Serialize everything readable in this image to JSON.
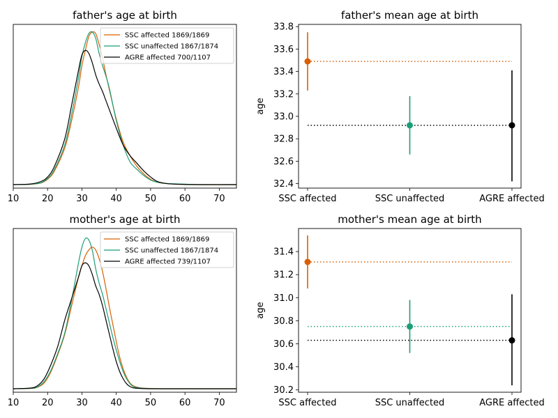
{
  "chart_data": [
    {
      "type": "line",
      "title": "father's age at birth",
      "xlim": [
        10,
        75
      ],
      "xticks": [
        10,
        20,
        30,
        40,
        50,
        60,
        70
      ],
      "ylim": [
        0,
        1.05
      ],
      "yticks_shown": false,
      "legend_position": "top-right",
      "series": [
        {
          "name": "SSC affected 1869/1869",
          "color": "#d95f02",
          "x": [
            10,
            15,
            18,
            20,
            22,
            25,
            27,
            29,
            30,
            31,
            32,
            33,
            34,
            35,
            36,
            37,
            38,
            40,
            42,
            44,
            46,
            48,
            50,
            52,
            55,
            60,
            65,
            75
          ],
          "y": [
            0,
            0.002,
            0.01,
            0.035,
            0.09,
            0.24,
            0.42,
            0.64,
            0.78,
            0.88,
            0.97,
            1.0,
            0.99,
            0.92,
            0.83,
            0.72,
            0.62,
            0.43,
            0.28,
            0.19,
            0.12,
            0.07,
            0.035,
            0.015,
            0.006,
            0.001,
            0,
            0
          ]
        },
        {
          "name": "SSC unaffected 1867/1874",
          "color": "#1b9e77",
          "x": [
            10,
            15,
            18,
            20,
            22,
            25,
            27,
            29,
            30,
            31,
            32,
            33,
            34,
            35,
            36,
            37,
            38,
            40,
            42,
            44,
            46,
            48,
            50,
            52,
            55,
            60,
            65,
            75
          ],
          "y": [
            0,
            0.003,
            0.012,
            0.04,
            0.1,
            0.26,
            0.46,
            0.7,
            0.84,
            0.93,
            0.99,
            1.0,
            0.96,
            0.86,
            0.78,
            0.71,
            0.63,
            0.42,
            0.26,
            0.15,
            0.1,
            0.06,
            0.03,
            0.015,
            0.007,
            0.003,
            0,
            0
          ]
        },
        {
          "name": "AGRE affected 700/1107",
          "color": "#000000",
          "x": [
            10,
            15,
            18,
            20,
            22,
            25,
            27,
            29,
            30,
            31,
            32,
            33,
            34,
            35,
            36,
            37,
            38,
            40,
            42,
            44,
            46,
            48,
            50,
            52,
            55,
            60,
            65,
            75
          ],
          "y": [
            0,
            0.004,
            0.02,
            0.05,
            0.12,
            0.3,
            0.52,
            0.75,
            0.85,
            0.88,
            0.86,
            0.8,
            0.72,
            0.66,
            0.61,
            0.55,
            0.49,
            0.37,
            0.26,
            0.19,
            0.14,
            0.09,
            0.05,
            0.02,
            0.006,
            0.001,
            0,
            0
          ]
        }
      ]
    },
    {
      "type": "scatter",
      "title": "father's mean age at birth",
      "categories": [
        "SSC affected",
        "SSC unaffected",
        "AGRE affected"
      ],
      "ylabel": "age",
      "ylim": [
        32.36,
        33.82
      ],
      "yticks": [
        32.4,
        32.6,
        32.8,
        33.0,
        33.2,
        33.4,
        33.6,
        33.8
      ],
      "points": [
        {
          "category": "SSC affected",
          "mean": 33.49,
          "lower": 33.23,
          "upper": 33.75,
          "color": "#d95f02"
        },
        {
          "category": "SSC unaffected",
          "mean": 32.92,
          "lower": 32.66,
          "upper": 33.18,
          "color": "#1b9e77"
        },
        {
          "category": "AGRE affected",
          "mean": 32.92,
          "lower": 32.42,
          "upper": 33.41,
          "color": "#000000"
        }
      ],
      "reference_lines": [
        {
          "value": 33.49,
          "color": "#d95f02"
        },
        {
          "value": 32.92,
          "color": "#000000"
        }
      ]
    },
    {
      "type": "line",
      "title": "mother's age at birth",
      "xlim": [
        10,
        75
      ],
      "xticks": [
        10,
        20,
        30,
        40,
        50,
        60,
        70
      ],
      "ylim": [
        0,
        1.12
      ],
      "yticks_shown": false,
      "legend_position": "top-right",
      "series": [
        {
          "name": "SSC affected 1869/1869",
          "color": "#d95f02",
          "x": [
            10,
            15,
            17,
            19,
            21,
            23,
            25,
            27,
            29,
            30,
            31,
            32,
            33,
            34,
            35,
            36,
            37,
            38,
            39,
            40,
            41,
            42,
            43,
            44,
            45,
            47,
            50,
            55,
            75
          ],
          "y": [
            0,
            0.002,
            0.01,
            0.04,
            0.12,
            0.24,
            0.38,
            0.58,
            0.78,
            0.86,
            0.93,
            0.97,
            0.99,
            0.97,
            0.91,
            0.82,
            0.7,
            0.57,
            0.45,
            0.33,
            0.22,
            0.14,
            0.08,
            0.04,
            0.02,
            0.006,
            0.002,
            0,
            0
          ]
        },
        {
          "name": "SSC unaffected 1867/1874",
          "color": "#1b9e77",
          "x": [
            10,
            15,
            17,
            19,
            21,
            23,
            25,
            27,
            29,
            30,
            31,
            32,
            33,
            34,
            35,
            36,
            37,
            38,
            39,
            40,
            41,
            42,
            43,
            44,
            45,
            47,
            50,
            55,
            75
          ],
          "y": [
            0,
            0.003,
            0.012,
            0.05,
            0.13,
            0.25,
            0.39,
            0.62,
            0.88,
            0.99,
            1.05,
            1.04,
            0.97,
            0.84,
            0.74,
            0.66,
            0.56,
            0.46,
            0.36,
            0.27,
            0.19,
            0.12,
            0.07,
            0.035,
            0.015,
            0.005,
            0.001,
            0,
            0
          ]
        },
        {
          "name": "AGRE affected 739/1107",
          "color": "#000000",
          "x": [
            10,
            15,
            17,
            19,
            21,
            23,
            25,
            27,
            29,
            30,
            31,
            32,
            33,
            34,
            35,
            36,
            37,
            38,
            39,
            40,
            41,
            42,
            43,
            44,
            45,
            47,
            50,
            55,
            75
          ],
          "y": [
            0,
            0.005,
            0.02,
            0.07,
            0.17,
            0.3,
            0.48,
            0.63,
            0.78,
            0.86,
            0.88,
            0.86,
            0.8,
            0.72,
            0.66,
            0.58,
            0.48,
            0.38,
            0.28,
            0.19,
            0.12,
            0.07,
            0.035,
            0.015,
            0.006,
            0.002,
            0,
            0,
            0
          ]
        }
      ]
    },
    {
      "type": "scatter",
      "title": "mother's mean age at birth",
      "categories": [
        "SSC affected",
        "SSC unaffected",
        "AGRE affected"
      ],
      "ylabel": "age",
      "ylim": [
        30.18,
        31.6
      ],
      "yticks": [
        30.2,
        30.4,
        30.6,
        30.8,
        31.0,
        31.2,
        31.4
      ],
      "points": [
        {
          "category": "SSC affected",
          "mean": 31.31,
          "lower": 31.08,
          "upper": 31.54,
          "color": "#d95f02"
        },
        {
          "category": "SSC unaffected",
          "mean": 30.75,
          "lower": 30.52,
          "upper": 30.98,
          "color": "#1b9e77"
        },
        {
          "category": "AGRE affected",
          "mean": 30.63,
          "lower": 30.24,
          "upper": 31.03,
          "color": "#000000"
        }
      ],
      "reference_lines": [
        {
          "value": 31.31,
          "color": "#d95f02"
        },
        {
          "value": 30.75,
          "color": "#1b9e77"
        },
        {
          "value": 30.63,
          "color": "#000000"
        }
      ]
    }
  ]
}
